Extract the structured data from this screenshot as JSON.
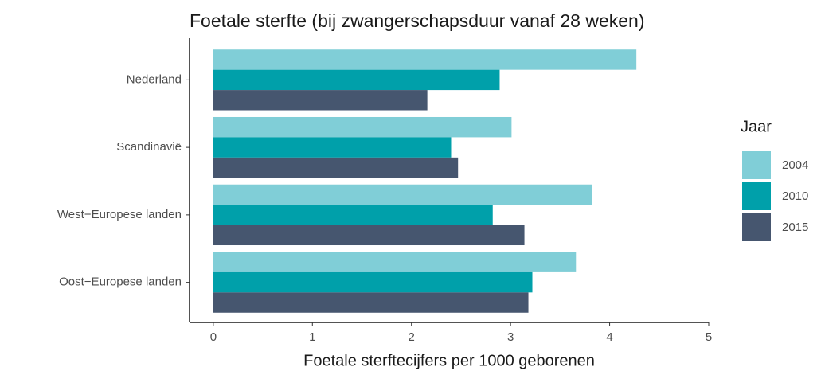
{
  "chart_data": {
    "type": "barh",
    "title": "Foetale sterfte (bij zwangerschapsduur vanaf 28 weken)",
    "xlabel": "Foetale sterftecijfers per 1000 geborenen",
    "categories": [
      "Nederland",
      "Scandinavië",
      "West−Europese landen",
      "Oost−Europese landen"
    ],
    "series": [
      {
        "name": "2004",
        "color": "#80ced7",
        "values": [
          4.27,
          3.01,
          3.82,
          3.66
        ]
      },
      {
        "name": "2010",
        "color": "#00a0aa",
        "values": [
          2.89,
          2.4,
          2.82,
          3.22
        ]
      },
      {
        "name": "2015",
        "color": "#46566f",
        "values": [
          2.16,
          2.47,
          3.14,
          3.18
        ]
      }
    ],
    "legend_title": "Jaar",
    "legend": "right",
    "xlim": [
      -0.24,
      5
    ],
    "xticks": [
      0,
      1,
      2,
      3,
      4,
      5
    ],
    "grid": false
  }
}
